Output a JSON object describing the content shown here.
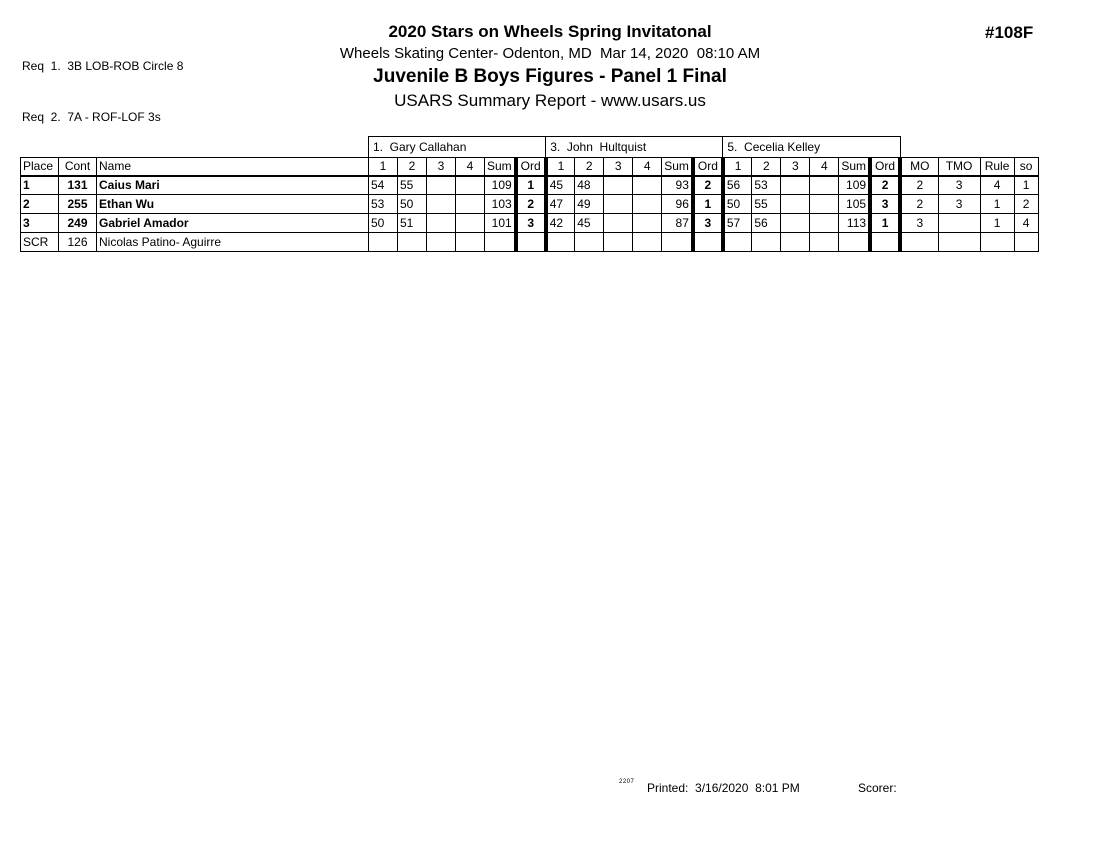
{
  "header": {
    "title": "2020 Stars on Wheels Spring Invitatonal",
    "venue_datetime": "Wheels Skating Center- Odenton, MD  Mar 14, 2020  08:10 AM",
    "division": "Juvenile B Boys Figures - Panel 1 Final",
    "report_type": "USARS Summary Report - www.usars.us",
    "event_number": "#108F",
    "requirements": [
      "Req  1.  3B LOB-ROB Circle 8",
      "Req  2.  7A - ROF-LOF 3s"
    ]
  },
  "table": {
    "corner_headers": [
      "Place",
      "Cont",
      "Name"
    ],
    "judge_score_headers": [
      "1",
      "2",
      "3",
      "4",
      "Sum",
      "Ord"
    ],
    "summary_headers": [
      "MO",
      "TMO",
      "Rule",
      "so"
    ],
    "judges": [
      "1.  Gary Callahan",
      "3.  John  Hultquist",
      "5.  Cecelia Kelley"
    ],
    "rows": [
      {
        "place": "1",
        "cont": "131",
        "name": "Caius Mari",
        "bold": true,
        "judge_scores": [
          {
            "marks": [
              "54",
              "55",
              "",
              ""
            ],
            "sum": "109",
            "ord": "1"
          },
          {
            "marks": [
              "45",
              "48",
              "",
              ""
            ],
            "sum": "93",
            "ord": "2"
          },
          {
            "marks": [
              "56",
              "53",
              "",
              ""
            ],
            "sum": "109",
            "ord": "2"
          }
        ],
        "mo": "2",
        "tmo": "3",
        "rule": "4",
        "so": "1"
      },
      {
        "place": "2",
        "cont": "255",
        "name": "Ethan Wu",
        "bold": true,
        "judge_scores": [
          {
            "marks": [
              "53",
              "50",
              "",
              ""
            ],
            "sum": "103",
            "ord": "2"
          },
          {
            "marks": [
              "47",
              "49",
              "",
              ""
            ],
            "sum": "96",
            "ord": "1"
          },
          {
            "marks": [
              "50",
              "55",
              "",
              ""
            ],
            "sum": "105",
            "ord": "3"
          }
        ],
        "mo": "2",
        "tmo": "3",
        "rule": "1",
        "so": "2"
      },
      {
        "place": "3",
        "cont": "249",
        "name": "Gabriel Amador",
        "bold": true,
        "judge_scores": [
          {
            "marks": [
              "50",
              "51",
              "",
              ""
            ],
            "sum": "101",
            "ord": "3"
          },
          {
            "marks": [
              "42",
              "45",
              "",
              ""
            ],
            "sum": "87",
            "ord": "3"
          },
          {
            "marks": [
              "57",
              "56",
              "",
              ""
            ],
            "sum": "113",
            "ord": "1"
          }
        ],
        "mo": "3",
        "tmo": "",
        "rule": "1",
        "so": "4"
      },
      {
        "place": "SCR",
        "cont": "126",
        "name": "Nicolas Patino- Aguirre",
        "bold": false,
        "judge_scores": [
          {
            "marks": [
              "",
              "",
              "",
              ""
            ],
            "sum": "",
            "ord": ""
          },
          {
            "marks": [
              "",
              "",
              "",
              ""
            ],
            "sum": "",
            "ord": ""
          },
          {
            "marks": [
              "",
              "",
              "",
              ""
            ],
            "sum": "",
            "ord": ""
          }
        ],
        "mo": "",
        "tmo": "",
        "rule": "",
        "so": ""
      }
    ]
  },
  "footer": {
    "code": "2207",
    "printed": "Printed:  3/16/2020  8:01 PM",
    "scorer": "Scorer:"
  }
}
